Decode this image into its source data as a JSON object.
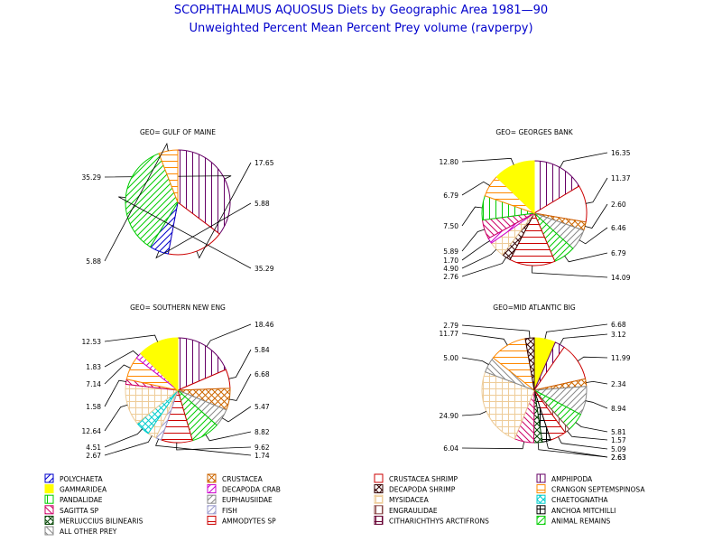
{
  "title": "SCOPHTHALMUS AQUOSUS Diets by Geographic Area 1981—90",
  "subtitle": "Unweighted Percent Mean Percent Prey  volume (ravperpy)",
  "chart_data": [
    {
      "type": "pie",
      "title": "GEO= GULF OF MAINE",
      "slices": [
        {
          "category": "Amphipoda",
          "value": 35.29
        },
        {
          "category": "Crustacea Shrimp",
          "value": 17.65
        },
        {
          "category": "Polychaeta",
          "value": 5.88
        },
        {
          "category": "Animal Remains",
          "value": 35.29
        },
        {
          "category": "Crangon septemspinosa",
          "value": 5.88
        }
      ]
    },
    {
      "type": "pie",
      "title": "GEO= GEORGES BANK",
      "slices": [
        {
          "category": "Amphipoda",
          "value": 16.35
        },
        {
          "category": "Crustacea Shrimp",
          "value": 11.37
        },
        {
          "category": "Crustacea",
          "value": 2.6
        },
        {
          "category": "Euphausiidae",
          "value": 6.46
        },
        {
          "category": "Animal Remains",
          "value": 6.79
        },
        {
          "category": "Ammodytes sp",
          "value": 14.09
        },
        {
          "category": "Decapoda Shrimp",
          "value": 2.76
        },
        {
          "category": "Mysidacea",
          "value": 4.9
        },
        {
          "category": "Decapoda Crab",
          "value": 1.7
        },
        {
          "category": "Sagitta sp",
          "value": 5.89
        },
        {
          "category": "Pandalidae",
          "value": 7.5
        },
        {
          "category": "Crangon septemspinosa",
          "value": 6.79
        },
        {
          "category": "Gammaridea",
          "value": 12.8
        }
      ]
    },
    {
      "type": "pie",
      "title": "GEO= SOUTHERN NEW ENG",
      "slices": [
        {
          "category": "Amphipoda",
          "value": 18.46
        },
        {
          "category": "Crustacea Shrimp",
          "value": 5.84
        },
        {
          "category": "Crustacea",
          "value": 6.68
        },
        {
          "category": "Euphausiidae",
          "value": 5.47
        },
        {
          "category": "Animal Remains",
          "value": 8.82
        },
        {
          "category": "Ammodytes sp",
          "value": 9.62
        },
        {
          "category": "Fish",
          "value": 1.74
        },
        {
          "category": "Mysidacea",
          "value": 2.67
        },
        {
          "category": "Chaetognatha",
          "value": 4.51
        },
        {
          "category": "Mysidacea",
          "value": 12.64
        },
        {
          "category": "Sagitta sp",
          "value": 1.58
        },
        {
          "category": "Crangon septemspinosa",
          "value": 7.14
        },
        {
          "category": "Decapoda Crab",
          "value": 1.83
        },
        {
          "category": "Gammaridea",
          "value": 12.53
        }
      ]
    },
    {
      "type": "pie",
      "title": "GEO=MID ATLANTIC BIG",
      "slices": [
        {
          "category": "Gammaridea",
          "value": 6.68
        },
        {
          "category": "Amphipoda",
          "value": 3.12
        },
        {
          "category": "Crustacea Shrimp",
          "value": 11.99
        },
        {
          "category": "Crustacea",
          "value": 2.34
        },
        {
          "category": "Euphausiidae",
          "value": 8.94
        },
        {
          "category": "Animal Remains",
          "value": 5.81
        },
        {
          "category": "Engraulidae",
          "value": 1.57
        },
        {
          "category": "Ammodytes sp",
          "value": 5.09
        },
        {
          "category": "Anchoa mitchilli",
          "value": 2.63
        },
        {
          "category": "Merluccius bilinearis",
          "value": 2.63
        },
        {
          "category": "Sagitta sp",
          "value": 6.04
        },
        {
          "category": "Mysidacea",
          "value": 24.9
        },
        {
          "category": "All Other Prey",
          "value": 5.0
        },
        {
          "category": "Crangon septemspinosa",
          "value": 11.77
        },
        {
          "category": "Decapoda Shrimp",
          "value": 2.79
        }
      ]
    }
  ],
  "pies": [
    {
      "title": "GEO= GULF OF MAINE",
      "labels": [
        {
          "text": "35.29"
        },
        {
          "text": "17.65"
        },
        {
          "text": "5.88"
        },
        {
          "text": "35.29"
        },
        {
          "text": "5.88"
        }
      ]
    },
    {
      "title": "GEO= GEORGES BANK",
      "labels": [
        {
          "text": "16.35"
        },
        {
          "text": "11.37"
        },
        {
          "text": "2.60"
        },
        {
          "text": "6.46"
        },
        {
          "text": "6.79"
        },
        {
          "text": "14.09"
        },
        {
          "text": "2.76"
        },
        {
          "text": "4.90"
        },
        {
          "text": "1.70"
        },
        {
          "text": "5.89"
        },
        {
          "text": "7.50"
        },
        {
          "text": "6.79"
        },
        {
          "text": "12.80"
        }
      ]
    },
    {
      "title": "GEO= SOUTHERN NEW ENG",
      "labels": [
        {
          "text": "18.46"
        },
        {
          "text": "5.84"
        },
        {
          "text": "6.68"
        },
        {
          "text": "5.47"
        },
        {
          "text": "8.82"
        },
        {
          "text": "9.62"
        },
        {
          "text": "1.74"
        },
        {
          "text": "2.67"
        },
        {
          "text": "4.51"
        },
        {
          "text": "12.64"
        },
        {
          "text": "1.58"
        },
        {
          "text": "7.14"
        },
        {
          "text": "1.83"
        },
        {
          "text": "12.53"
        }
      ]
    },
    {
      "title": "GEO=MID ATLANTIC BIG",
      "labels": [
        {
          "text": "6.68"
        },
        {
          "text": "3.12"
        },
        {
          "text": "11.99"
        },
        {
          "text": "2.34"
        },
        {
          "text": "8.94"
        },
        {
          "text": "5.81"
        },
        {
          "text": "1.57"
        },
        {
          "text": "5.09"
        },
        {
          "text": "2.63"
        },
        {
          "text": "2.63"
        },
        {
          "text": "6.04"
        },
        {
          "text": "24.90"
        },
        {
          "text": "5.00"
        },
        {
          "text": "11.77"
        },
        {
          "text": "2.79"
        }
      ]
    }
  ],
  "legend": [
    {
      "label": "POLYCHAETA",
      "color": "#0000cc",
      "pattern": "diag-right"
    },
    {
      "label": "CRUSTACEA",
      "color": "#cc6600",
      "pattern": "cross-diag"
    },
    {
      "label": "CRUSTACEA SHRIMP",
      "color": "#cc0000",
      "pattern": "empty-box"
    },
    {
      "label": "AMPHIPODA",
      "color": "#660066",
      "pattern": "vertical"
    },
    {
      "label": "GAMMARIDEA",
      "color": "#ffff00",
      "pattern": "solid"
    },
    {
      "label": "DECAPODA CRAB",
      "color": "#cc00cc",
      "pattern": "diag-right"
    },
    {
      "label": "DECAPODA SHRIMP",
      "color": "#330000",
      "pattern": "cross-diag"
    },
    {
      "label": "CRANGON SEPTEMSPINOSA",
      "color": "#ff8800",
      "pattern": "horizontal"
    },
    {
      "label": "PANDALIDAE",
      "color": "#00cc00",
      "pattern": "vertical"
    },
    {
      "label": "EUPHAUSIIDAE",
      "color": "#888888",
      "pattern": "diag-right"
    },
    {
      "label": "MYSIDACEA",
      "color": "#eecc99",
      "pattern": "grid"
    },
    {
      "label": "CHAETOGNATHA",
      "color": "#00cccc",
      "pattern": "cross-diag"
    },
    {
      "label": "SAGITTA SP",
      "color": "#cc0066",
      "pattern": "diag-left"
    },
    {
      "label": "FISH",
      "color": "#9999cc",
      "pattern": "diag-right"
    },
    {
      "label": "ENGRAULIDAE",
      "color": "#884444",
      "pattern": "vertical"
    },
    {
      "label": "ANCHOA MITCHILLI",
      "color": "#000000",
      "pattern": "grid"
    },
    {
      "label": "MERLUCCIUS BILINEARIS",
      "color": "#004400",
      "pattern": "cross-diag"
    },
    {
      "label": "AMMODYTES SP",
      "color": "#cc0000",
      "pattern": "horizontal"
    },
    {
      "label": "CITHARICHTHYS ARCTIFRONS",
      "color": "#660033",
      "pattern": "grid"
    },
    {
      "label": "ANIMAL REMAINS",
      "color": "#00cc00",
      "pattern": "diag-right"
    },
    {
      "label": "ALL OTHER PREY",
      "color": "#888888",
      "pattern": "diag-left"
    }
  ]
}
